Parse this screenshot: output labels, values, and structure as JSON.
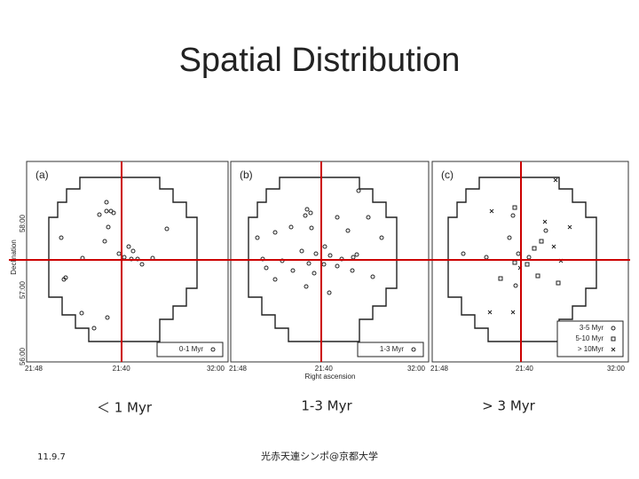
{
  "title": "Spatial Distribution",
  "figure": {
    "y_label": "Declination",
    "y_ticks": [
      "58:00",
      "57:00",
      "56:00"
    ],
    "x_label": "Right ascension",
    "panels": [
      {
        "label": "(a)",
        "x_ticks": [
          "21:48",
          "21:40",
          "32:00"
        ],
        "legend": [
          "0-1 Myr"
        ]
      },
      {
        "label": "(b)",
        "x_ticks": [
          "21:48",
          "21:40",
          "32:00"
        ],
        "legend": [
          "1-3 Myr"
        ]
      },
      {
        "label": "(c)",
        "x_ticks": [
          "21:48",
          "21:40",
          "32:00"
        ],
        "legend": [
          "3-5 Myr",
          "5-10 Myr",
          "> 10Myr"
        ]
      }
    ]
  },
  "captions": [
    "＜ 1 Myr",
    "1-3 Myr",
    "> 3 Myr"
  ],
  "footer": {
    "date": "11.9.7",
    "venue": "光赤天連シンポ@京都大学"
  }
}
